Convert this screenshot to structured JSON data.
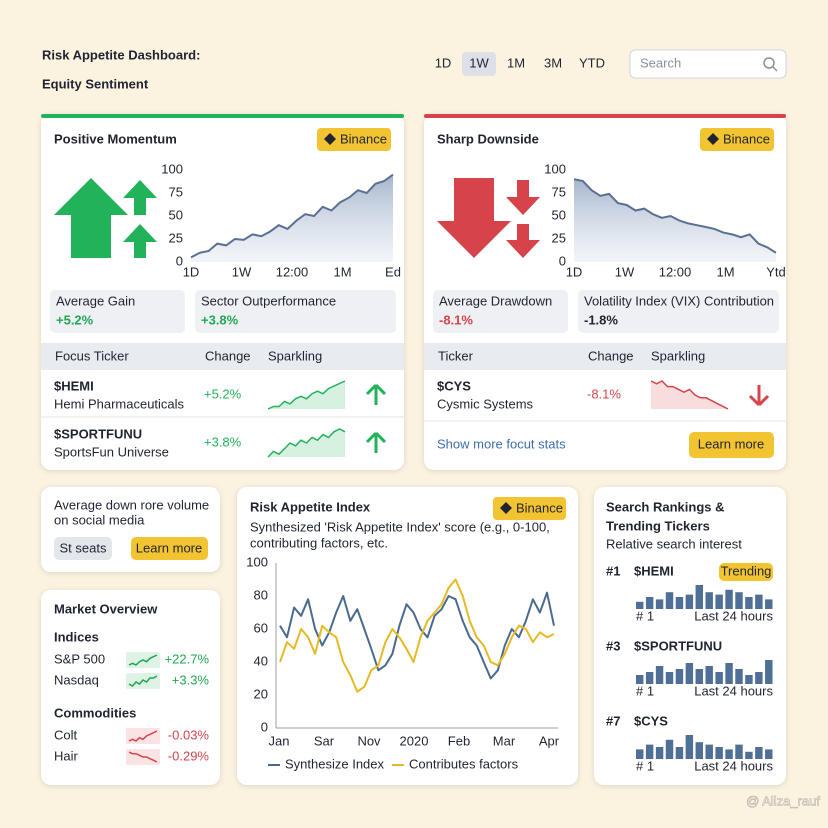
{
  "header": {
    "title": [
      "Risk Appetite Dashboard:",
      "Equity Sentiment"
    ],
    "ranges": [
      "1D",
      "1W",
      "1M",
      "3M",
      "YTD"
    ],
    "active_range": "1W",
    "search": "Search"
  },
  "cards": [
    {
      "title": "Positive Momentum",
      "badge": "Binance",
      "color": "#22b25a",
      "chart": {
        "ylim": [
          0,
          100
        ],
        "yticks": [
          0,
          25,
          50,
          75,
          100
        ],
        "xlabels": [
          "1D",
          "1W",
          "12:00",
          "1M",
          "Ed"
        ],
        "values": [
          5,
          10,
          12,
          20,
          18,
          25,
          24,
          30,
          28,
          33,
          40,
          36,
          45,
          52,
          50,
          60,
          56,
          65,
          70,
          78,
          75,
          85,
          88,
          95
        ]
      },
      "stats": [
        {
          "label": "Average Gain",
          "value": "+5.2%",
          "color": "#22a652"
        },
        {
          "label": "Sector Outperformance",
          "value": "+3.8%",
          "color": "#22a652"
        }
      ],
      "columns": [
        "Focus Ticker",
        "Change",
        "Sparkling"
      ],
      "rows": [
        {
          "ticker": "$HEMI",
          "name": "Hemi Pharmaceuticals",
          "change": "+5.2%",
          "spark": [
            2,
            3,
            3,
            5,
            4,
            6,
            7,
            6,
            8,
            9,
            8,
            10,
            11,
            12,
            13
          ]
        },
        {
          "ticker": "$SPORTFUNU",
          "name": "SportsFun Universe",
          "change": "+3.8%",
          "spark": [
            2,
            4,
            3,
            5,
            7,
            6,
            8,
            7,
            9,
            8,
            10,
            9,
            11,
            12,
            11
          ]
        }
      ]
    },
    {
      "title": "Sharp Downside",
      "badge": "Binance",
      "color": "#d6434b",
      "chart": {
        "ylim": [
          0,
          100
        ],
        "yticks": [
          0,
          25,
          50,
          75,
          100
        ],
        "xlabels": [
          "1D",
          "1W",
          "12:00",
          "1M",
          "Ytd"
        ],
        "values": [
          90,
          88,
          78,
          72,
          74,
          64,
          62,
          56,
          58,
          52,
          48,
          50,
          45,
          42,
          40,
          38,
          36,
          32,
          30,
          27,
          30,
          20,
          16,
          10
        ]
      },
      "stats": [
        {
          "label": "Average Drawdown",
          "value": "-8.1%",
          "color": "#d6434b"
        },
        {
          "label": "Volatility Index (VIX) Contribution",
          "value": "-1.8%",
          "color": "#1f2430"
        }
      ],
      "columns": [
        "Ticker",
        "Change",
        "Sparkling"
      ],
      "rows": [
        {
          "ticker": "$CYS",
          "name": "Cysmic Systems",
          "change": "-8.1%",
          "spark": [
            12,
            11,
            12,
            10,
            10,
            9,
            8,
            9,
            7,
            6,
            6,
            5,
            4,
            3,
            2
          ]
        }
      ],
      "link": "Show more focut stats",
      "button": "Learn more"
    }
  ],
  "social": {
    "text": [
      "Average down rore volume",
      "on social media"
    ],
    "buttons": [
      "St seats",
      "Learn more"
    ]
  },
  "market": {
    "title": "Market Overview",
    "groups": [
      {
        "name": "Indices",
        "items": [
          {
            "name": "S&P 500",
            "change": "+22.7%",
            "color": "#22a652",
            "spark": [
              2,
              3,
              2,
              4,
              5,
              4,
              6,
              7,
              8
            ]
          },
          {
            "name": "Nasdaq",
            "change": "+3.3%",
            "color": "#22a652",
            "spark": [
              3,
              2,
              4,
              3,
              5,
              4,
              6,
              6,
              7
            ]
          }
        ]
      },
      {
        "name": "Commodities",
        "items": [
          {
            "name": "Colt",
            "change": "-0.03%",
            "color": "#d6434b",
            "spark": [
              2,
              3,
              2,
              4,
              3,
              5,
              6,
              7,
              8
            ]
          },
          {
            "name": "Hair",
            "change": "-0.29%",
            "color": "#d6434b",
            "spark": [
              8,
              7,
              7,
              6,
              5,
              5,
              4,
              3,
              2
            ]
          }
        ]
      }
    ]
  },
  "index_chart": {
    "type": "line",
    "title": "Risk Appetite Index",
    "badge": "Binance",
    "subtitle": [
      "Synthesized 'Risk Appetite Index' score (e.g., 0-100,",
      "contributing factors, etc."
    ],
    "xlabels": [
      "Jan",
      "Sar",
      "Nov",
      "2020",
      "Feb",
      "Mar",
      "Apr"
    ],
    "ylim": [
      0,
      100
    ],
    "yticks": [
      0,
      20,
      40,
      60,
      80,
      100
    ],
    "series": [
      {
        "name": "Synthesize Index",
        "color": "#4a6a8f",
        "values": [
          62,
          55,
          73,
          68,
          78,
          60,
          50,
          58,
          70,
          80,
          65,
          72,
          60,
          48,
          35,
          38,
          45,
          62,
          75,
          70,
          60,
          55,
          68,
          72,
          80,
          78,
          65,
          55,
          50,
          40,
          30,
          35,
          50,
          60,
          55,
          65,
          78,
          70,
          82,
          62
        ]
      },
      {
        "name": "Contributes factors",
        "color": "#e7b923",
        "values": [
          40,
          52,
          48,
          60,
          55,
          45,
          62,
          58,
          55,
          40,
          32,
          22,
          25,
          35,
          38,
          52,
          60,
          55,
          48,
          40,
          55,
          65,
          70,
          75,
          85,
          90,
          80,
          65,
          55,
          50,
          40,
          38,
          45,
          55,
          62,
          60,
          52,
          58,
          55,
          57
        ]
      }
    ]
  },
  "rankings": {
    "title": [
      "Search Rankings &",
      "Trending Tickers"
    ],
    "subtitle": "Relative search interest",
    "items": [
      {
        "rank": "#1",
        "ticker": "$HEMI",
        "badge": "Trending",
        "bars": [
          3,
          5,
          4,
          7,
          5,
          6,
          10,
          7,
          6,
          8,
          7,
          5,
          6,
          4
        ],
        "start": "# 1",
        "end": "Last 24 hours"
      },
      {
        "rank": "#3",
        "ticker": "$SPORTFUNU",
        "bars": [
          3,
          4,
          6,
          4,
          5,
          7,
          5,
          6,
          4,
          7,
          5,
          3,
          4,
          8
        ],
        "start": "# 1",
        "end": "Last 24 hours"
      },
      {
        "rank": "#7",
        "ticker": "$CYS",
        "bars": [
          4,
          6,
          5,
          8,
          5,
          10,
          7,
          6,
          5,
          4,
          6,
          3,
          5,
          4
        ],
        "start": "# 1",
        "end": "Last 24 hours"
      }
    ]
  },
  "watermark": "@ Aliza_rauf"
}
